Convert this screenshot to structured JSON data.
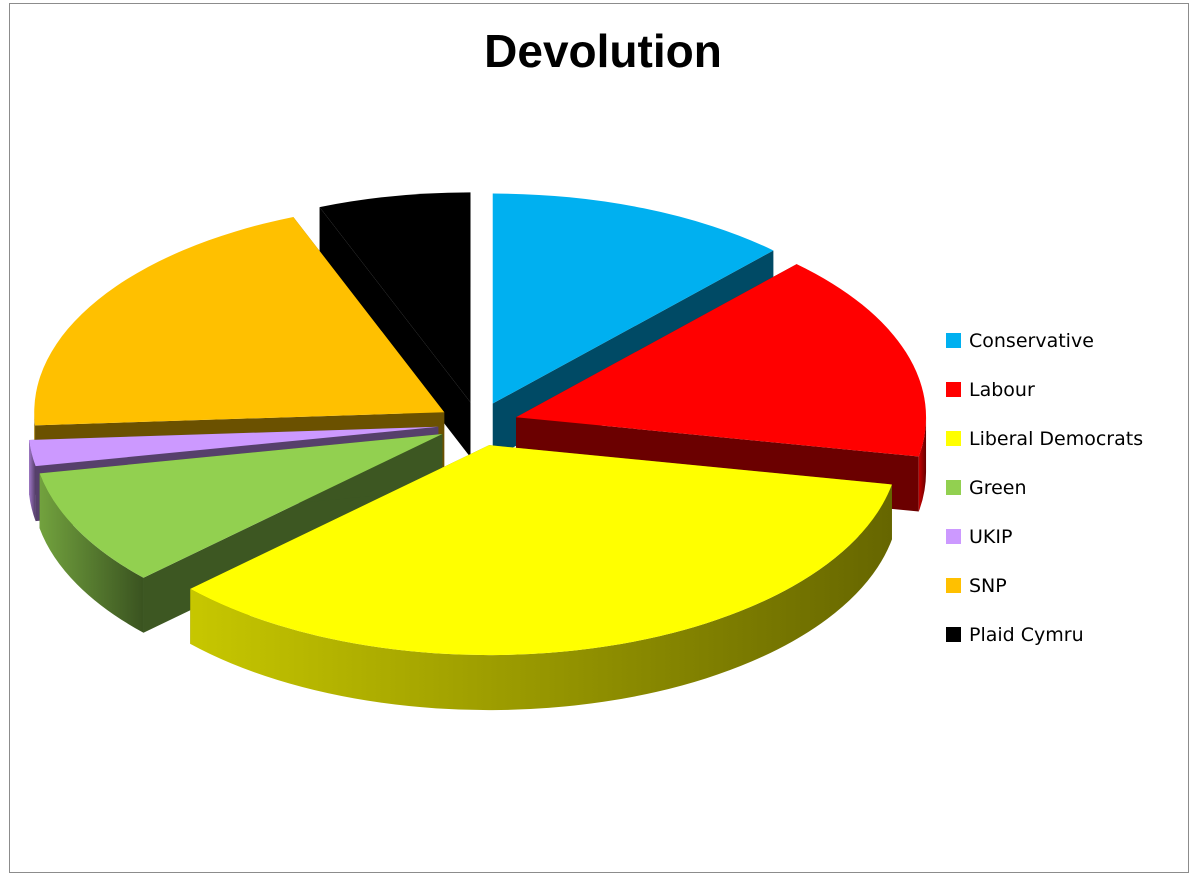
{
  "chart_data": {
    "type": "pie",
    "title": "Devolution",
    "exploded": true,
    "three_d": true,
    "legend_placement": "right",
    "slices": [
      {
        "label": "Conservative",
        "value": 12,
        "color": "#00b0f0"
      },
      {
        "label": "Labour",
        "value": 16,
        "color": "#ff0000"
      },
      {
        "label": "Liberal Democrats",
        "value": 35,
        "color": "#ffff00"
      },
      {
        "label": "Green",
        "value": 9,
        "color": "#92d050"
      },
      {
        "label": "UKIP",
        "value": 2,
        "color": "#cc99ff"
      },
      {
        "label": "SNP",
        "value": 20,
        "color": "#ffc000"
      },
      {
        "label": "Plaid Cymru",
        "value": 6,
        "color": "#000000"
      }
    ]
  }
}
